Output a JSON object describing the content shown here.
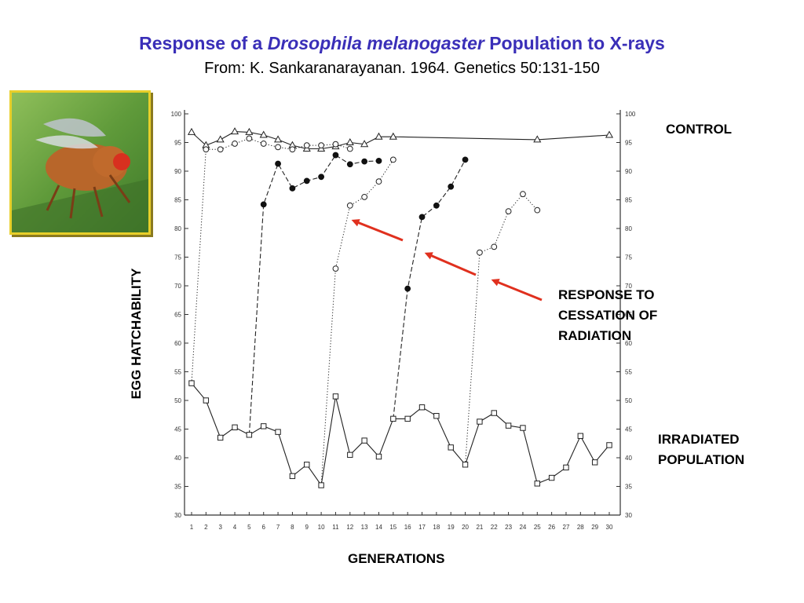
{
  "header": {
    "title_pre": "Response of a ",
    "title_italic": "Drosophila melanogaster",
    "title_post": " Population to X-rays",
    "subtitle": "From: K. Sankaranarayanan. 1964. Genetics 50:131-150"
  },
  "labels": {
    "control": "CONTROL",
    "response_line1": "RESPONSE TO",
    "response_line2": "CESSATION OF",
    "response_line3": "RADIATION",
    "irradiated_line1": "IRRADIATED",
    "irradiated_line2": "POPULATION"
  },
  "photo": {
    "subject": "fruit-fly-photo"
  },
  "colors": {
    "arrow": "#e0301e",
    "title": "#3a2fb8",
    "frame": "#e8cf2a"
  },
  "chart_data": {
    "type": "line",
    "xlabel": "GENERATIONS",
    "ylabel": "EGG HATCHABILITY",
    "xlim": [
      1,
      30
    ],
    "ylim": [
      30,
      100
    ],
    "x_ticks": [
      1,
      2,
      3,
      4,
      5,
      6,
      7,
      8,
      9,
      10,
      11,
      12,
      13,
      14,
      15,
      16,
      17,
      18,
      19,
      20,
      21,
      22,
      23,
      24,
      25,
      26,
      27,
      28,
      29,
      30
    ],
    "y_ticks": [
      30,
      35,
      40,
      45,
      50,
      55,
      60,
      65,
      70,
      75,
      80,
      85,
      90,
      95,
      100
    ],
    "series": [
      {
        "role": "control",
        "marker": "triangle",
        "dash": "solid",
        "points": [
          [
            1,
            96.8
          ],
          [
            2,
            94.5
          ],
          [
            3,
            95.5
          ],
          [
            4,
            96.9
          ],
          [
            5,
            96.8
          ],
          [
            6,
            96.3
          ],
          [
            7,
            95.5
          ],
          [
            8,
            94.5
          ],
          [
            9,
            93.9
          ],
          [
            10,
            93.9
          ],
          [
            11,
            94.3
          ],
          [
            12,
            95
          ],
          [
            13,
            94.7
          ],
          [
            14,
            96
          ],
          [
            15,
            96
          ],
          [
            25,
            95.5
          ],
          [
            30,
            96.3
          ]
        ]
      },
      {
        "role": "control-open",
        "marker": "circle-open",
        "dash": "dotted",
        "points": [
          [
            1,
            53
          ],
          [
            2,
            93.8
          ],
          [
            3,
            93.8
          ],
          [
            4,
            94.8
          ],
          [
            5,
            95.7
          ],
          [
            6,
            94.8
          ],
          [
            7,
            94.2
          ],
          [
            8,
            93.8
          ],
          [
            9,
            94.5
          ],
          [
            10,
            94.5
          ],
          [
            11,
            94.7
          ],
          [
            12,
            93.9
          ]
        ]
      },
      {
        "role": "irradiated",
        "marker": "square",
        "dash": "solid",
        "points": [
          [
            1,
            53
          ],
          [
            2,
            50
          ],
          [
            3,
            43.5
          ],
          [
            4,
            45.3
          ],
          [
            5,
            44
          ],
          [
            6,
            45.5
          ],
          [
            7,
            44.5
          ],
          [
            8,
            36.8
          ],
          [
            9,
            38.8
          ],
          [
            10,
            35.2
          ],
          [
            11,
            50.7
          ],
          [
            12,
            40.5
          ],
          [
            13,
            43
          ],
          [
            14,
            40.2
          ],
          [
            15,
            46.8
          ],
          [
            16,
            46.8
          ],
          [
            17,
            48.8
          ],
          [
            18,
            47.3
          ],
          [
            19,
            41.8
          ],
          [
            20,
            38.8
          ],
          [
            21,
            46.3
          ],
          [
            22,
            47.8
          ],
          [
            23,
            45.6
          ],
          [
            24,
            45.2
          ],
          [
            25,
            35.5
          ],
          [
            26,
            36.5
          ],
          [
            27,
            38.3
          ],
          [
            28,
            43.8
          ],
          [
            29,
            39.2
          ],
          [
            30,
            42.2
          ]
        ]
      },
      {
        "role": "recovery-from-5",
        "marker": "circle-filled",
        "dash": "dashed",
        "points": [
          [
            5,
            44
          ],
          [
            6,
            84.2
          ],
          [
            7,
            91.3
          ],
          [
            8,
            87
          ],
          [
            9,
            88.3
          ],
          [
            10,
            89
          ],
          [
            11,
            92.8
          ],
          [
            12,
            91.2
          ],
          [
            13,
            91.7
          ],
          [
            14,
            91.8
          ]
        ]
      },
      {
        "role": "recovery-from-10",
        "marker": "circle-open",
        "dash": "dotted",
        "points": [
          [
            10,
            35.2
          ],
          [
            11,
            73
          ],
          [
            12,
            84
          ],
          [
            13,
            85.5
          ],
          [
            14,
            88.2
          ],
          [
            15,
            92
          ]
        ]
      },
      {
        "role": "recovery-from-15",
        "marker": "circle-filled",
        "dash": "dashed",
        "points": [
          [
            15,
            46.8
          ],
          [
            16,
            69.5
          ],
          [
            17,
            82
          ],
          [
            18,
            84
          ],
          [
            19,
            87.3
          ],
          [
            20,
            92
          ]
        ]
      },
      {
        "role": "recovery-from-20",
        "marker": "circle-open",
        "dash": "dotted",
        "points": [
          [
            20,
            38.8
          ],
          [
            21,
            75.8
          ],
          [
            22,
            76.8
          ],
          [
            23,
            83
          ],
          [
            24,
            86
          ],
          [
            25,
            83.2
          ]
        ]
      }
    ]
  }
}
